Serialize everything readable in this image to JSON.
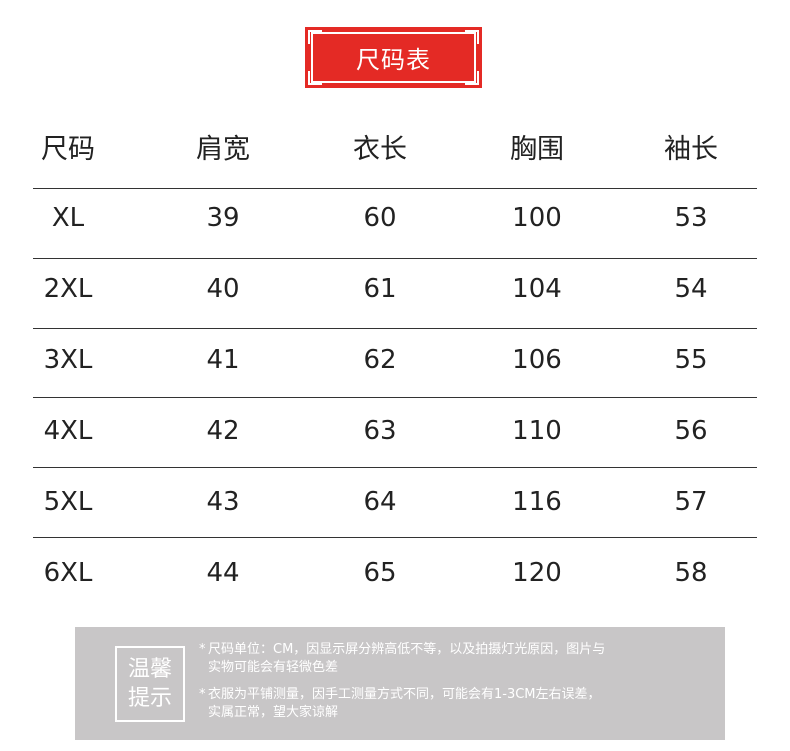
{
  "title": "尺码表",
  "colors": {
    "accent": "#e42a25",
    "note_bg": "#c8c6c7"
  },
  "table": {
    "headers": [
      "尺码",
      "肩宽",
      "衣长",
      "胸围",
      "袖长"
    ],
    "rows": [
      [
        "XL",
        "39",
        "60",
        "100",
        "53"
      ],
      [
        "2XL",
        "40",
        "61",
        "104",
        "54"
      ],
      [
        "3XL",
        "41",
        "62",
        "106",
        "55"
      ],
      [
        "4XL",
        "42",
        "63",
        "110",
        "56"
      ],
      [
        "5XL",
        "43",
        "64",
        "116",
        "57"
      ],
      [
        "6XL",
        "44",
        "65",
        "120",
        "58"
      ]
    ]
  },
  "note": {
    "label_line1": "温馨",
    "label_line2": "提示",
    "items": [
      {
        "star": "*",
        "line1": "尺码单位：CM，因显示屏分辨高低不等，以及拍摄灯光原因，图片与",
        "line2": "实物可能会有轻微色差"
      },
      {
        "star": "*",
        "line1": "衣服为平铺测量，因手工测量方式不同，可能会有1-3CM左右误差，",
        "line2": "实属正常，望大家谅解"
      }
    ]
  }
}
